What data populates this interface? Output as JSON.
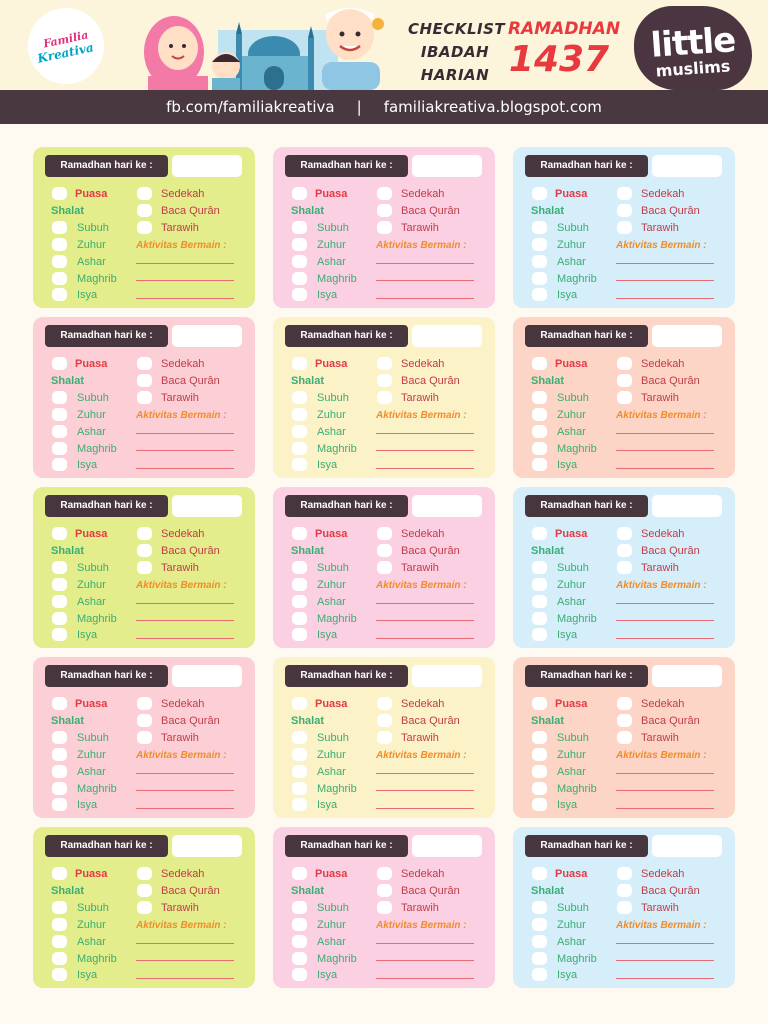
{
  "header": {
    "logo_left": [
      "Familia",
      "Kreativa"
    ],
    "title_left": [
      "CHECKLIST",
      "IBADAH",
      "HARIAN"
    ],
    "title_right": [
      "RAMADHAN",
      "1437"
    ],
    "logo_right": [
      "little",
      "muslims"
    ]
  },
  "links": {
    "facebook": "fb.com/familiakreativa",
    "separator": "|",
    "blog": "familiakreativa.blogspot.com"
  },
  "card_labels": {
    "day_label": "Ramadhan hari ke :",
    "puasa": "Puasa",
    "shalat": "Shalat",
    "subuh": "Subuh",
    "zuhur": "Zuhur",
    "ashar": "Ashar",
    "maghrib": "Maghrib",
    "isya": "Isya",
    "sedekah": "Sedekah",
    "baca_quran": "Baca Qurân",
    "tarawih": "Tarawih",
    "aktivitas": "Aktivitas Bermain :"
  },
  "colors": {
    "green": "#e3ed8b",
    "pink": "#fbd0e3",
    "blue": "#d5eefa",
    "rose": "#fccfd6",
    "cream": "#fcf2c7",
    "peach": "#fcd5c6",
    "dark": "#48363f"
  },
  "cards": [
    {
      "color": "green"
    },
    {
      "color": "pink"
    },
    {
      "color": "blue"
    },
    {
      "color": "rose"
    },
    {
      "color": "cream"
    },
    {
      "color": "peach"
    },
    {
      "color": "green"
    },
    {
      "color": "pink"
    },
    {
      "color": "blue"
    },
    {
      "color": "rose"
    },
    {
      "color": "cream"
    },
    {
      "color": "peach"
    },
    {
      "color": "green"
    },
    {
      "color": "pink"
    },
    {
      "color": "blue"
    }
  ]
}
